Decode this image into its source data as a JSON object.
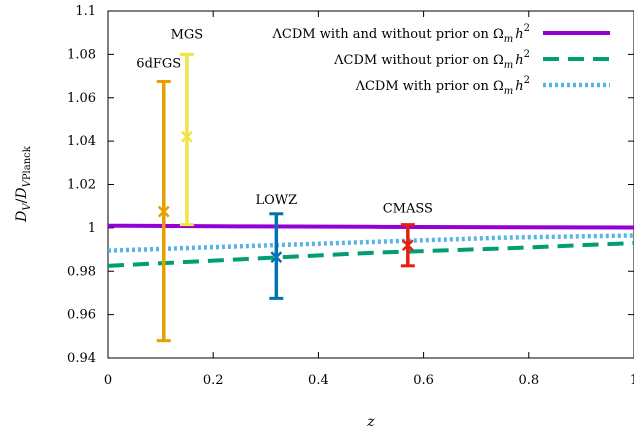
{
  "chart_data": {
    "type": "line",
    "xlabel": "z",
    "ylabel": "D_V / D_V_Planck",
    "ylabel_main": "D",
    "ylabel_main_sub": "V",
    "ylabel_slash": "/",
    "ylabel_den": "D",
    "ylabel_den_sub": "V",
    "ylabel_den_subsub": "Planck",
    "xlim": [
      0,
      1
    ],
    "ylim": [
      0.94,
      1.1
    ],
    "xticks": [
      0,
      0.2,
      0.4,
      0.6,
      0.8,
      1
    ],
    "xtick_labels": [
      "0",
      "0.2",
      "0.4",
      "0.6",
      "0.8",
      "1"
    ],
    "yticks": [
      0.94,
      0.96,
      0.98,
      1.0,
      1.02,
      1.04,
      1.06,
      1.08,
      1.1
    ],
    "ytick_labels": [
      "0.94",
      "0.96",
      "0.98",
      "1",
      "1.02",
      "1.04",
      "1.06",
      "1.08",
      "1.1"
    ],
    "grid": false,
    "legend_position": "top-right",
    "series": [
      {
        "name": "ΛCDM with and without prior on Ω_m h^2",
        "legend_text": "ΛCDM with and without prior on Ω",
        "color": "#9400d3",
        "style": "solid",
        "x": [
          0,
          0.25,
          0.5,
          0.75,
          1.0
        ],
        "y": [
          1.001,
          1.0007,
          1.0005,
          1.0003,
          1.0002
        ]
      },
      {
        "name": "ΛCDM without prior on Ω_m h^2",
        "legend_text": "ΛCDM without prior on Ω",
        "color": "#009e73",
        "style": "dashed",
        "x": [
          0,
          0.25,
          0.5,
          0.75,
          1.0
        ],
        "y": [
          0.9825,
          0.9855,
          0.9885,
          0.9905,
          0.993
        ]
      },
      {
        "name": "ΛCDM with prior on Ω_m h^2",
        "legend_text": "ΛCDM with prior on Ω",
        "color": "#56b4e9",
        "style": "dotted",
        "x": [
          0,
          0.25,
          0.5,
          0.75,
          1.0
        ],
        "y": [
          0.9895,
          0.9915,
          0.9935,
          0.9955,
          0.9965
        ]
      }
    ],
    "legend_sub": "m",
    "legend_h": "h",
    "legend_sup": "2",
    "points": [
      {
        "label": "6dFGS",
        "x": 0.106,
        "y": 1.0075,
        "yerr_low": 0.948,
        "yerr_high": 1.0675,
        "color": "#e69f00"
      },
      {
        "label": "MGS",
        "x": 0.15,
        "y": 1.042,
        "yerr_low": 1.0015,
        "yerr_high": 1.08,
        "color": "#f0e442"
      },
      {
        "label": "LOWZ",
        "x": 0.32,
        "y": 0.9865,
        "yerr_low": 0.9675,
        "yerr_high": 1.0065,
        "color": "#0072b2"
      },
      {
        "label": "CMASS",
        "x": 0.57,
        "y": 0.992,
        "yerr_low": 0.9825,
        "yerr_high": 1.0015,
        "color": "#e51e10"
      }
    ]
  }
}
